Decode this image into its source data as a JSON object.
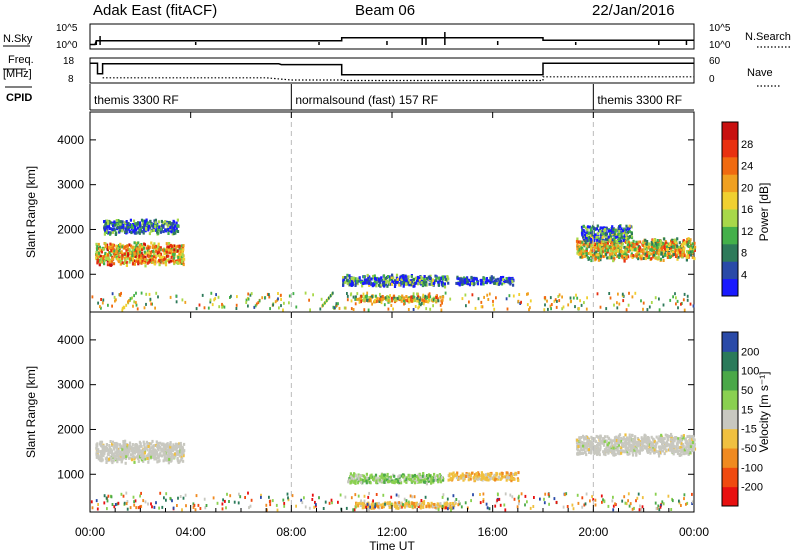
{
  "header": {
    "station": "Adak East (fitACF)",
    "beam": "Beam 06",
    "date": "22/Jan/2016"
  },
  "top_panels": {
    "nsky_label": "N.Sky",
    "nsky_ticks": [
      "10^5",
      "10^0"
    ],
    "nsearch_label": "N.Search",
    "nsearch_ticks": [
      "10^5",
      "10^0"
    ],
    "freq_label": "Freq.",
    "freq_unit": "[MHz]",
    "freq_ticks": [
      "18",
      "8"
    ],
    "nave_label": "Nave",
    "nave_ticks": [
      "60",
      "0"
    ],
    "cpid_label": "CPID"
  },
  "cpid_segments": [
    {
      "label": "themis 3300 RF",
      "start_h": 0,
      "end_h": 8
    },
    {
      "label": "normalsound (fast) 157 RF",
      "start_h": 8,
      "end_h": 20
    },
    {
      "label": "themis 3300 RF",
      "start_h": 20,
      "end_h": 24
    }
  ],
  "series_lines": {
    "freq_steps": [
      [
        0,
        16.5
      ],
      [
        0.3,
        16.5
      ],
      [
        0.3,
        11.5
      ],
      [
        0.5,
        11.5
      ],
      [
        0.5,
        16.2
      ],
      [
        7.5,
        16.2
      ],
      [
        7.6,
        15.8
      ],
      [
        10,
        15.8
      ],
      [
        10,
        11
      ],
      [
        18,
        11
      ],
      [
        18,
        16.5
      ],
      [
        24,
        16.5
      ]
    ],
    "nave_steps": [
      [
        0.5,
        6
      ],
      [
        7,
        6
      ],
      [
        8,
        2
      ],
      [
        10,
        2
      ],
      [
        10,
        1
      ],
      [
        18,
        1
      ],
      [
        18,
        8
      ],
      [
        24,
        8
      ]
    ],
    "nsky_steps": [
      [
        0,
        0.6
      ],
      [
        0.2,
        0.6
      ],
      [
        0.25,
        1.5
      ],
      [
        10,
        1.5
      ],
      [
        10,
        2.2
      ],
      [
        18,
        2.2
      ],
      [
        18,
        1.6
      ],
      [
        24,
        1.6
      ]
    ]
  },
  "chart_data": [
    {
      "type": "heatmap",
      "name": "power",
      "ylabel": "Slant Range [km]",
      "ylim": [
        180,
        4600
      ],
      "yticks": [
        1000,
        2000,
        3000,
        4000
      ],
      "xlim": [
        0,
        24
      ],
      "colorbar_label": "Power [dB]",
      "colorbar_ticks": [
        "4",
        "8",
        "12",
        "16",
        "20",
        "24",
        "28"
      ],
      "colorbar_colors": [
        "#1a1aff",
        "#2a4aa8",
        "#2e7a5a",
        "#44b04a",
        "#a8d84a",
        "#f0d030",
        "#f0a020",
        "#f06a10",
        "#e83010",
        "#c81010"
      ],
      "echo_regions": [
        {
          "t0": 0.2,
          "t1": 3.7,
          "r_center": 1450,
          "r_halfwidth": 270,
          "level": 0.65
        },
        {
          "t0": 0.5,
          "t1": 3.5,
          "r_center": 2050,
          "r_halfwidth": 180,
          "level": 0.15
        },
        {
          "t0": 10,
          "t1": 14.2,
          "r_center": 850,
          "r_halfwidth": 140,
          "level": 0.2
        },
        {
          "t0": 14.5,
          "t1": 16.8,
          "r_center": 850,
          "r_halfwidth": 100,
          "level": 0.1
        },
        {
          "t0": 10.5,
          "t1": 14,
          "r_center": 450,
          "r_halfwidth": 80,
          "level": 0.55
        },
        {
          "t0": 19.3,
          "t1": 24,
          "r_center": 1550,
          "r_halfwidth": 260,
          "level": 0.55
        },
        {
          "t0": 19.5,
          "t1": 21.5,
          "r_center": 1900,
          "r_halfwidth": 200,
          "level": 0.2
        }
      ]
    },
    {
      "type": "heatmap",
      "name": "velocity",
      "ylabel": "Slant Range [km]",
      "xlabel": "Time UT",
      "ylim": [
        180,
        4600
      ],
      "yticks": [
        1000,
        2000,
        3000,
        4000
      ],
      "xlim": [
        0,
        24
      ],
      "xtick_labels": [
        "00:00",
        "04:00",
        "08:00",
        "12:00",
        "16:00",
        "20:00",
        "00:00"
      ],
      "colorbar_label": "Velocity [m s⁻¹]",
      "colorbar_ticks": [
        "-200",
        "-100",
        "-50",
        "-15",
        "15",
        "50",
        "100",
        "200"
      ],
      "colorbar_colors": [
        "#e81010",
        "#f04a10",
        "#f08a20",
        "#f0c040",
        "#c8c8c0",
        "#8ad050",
        "#4aa848",
        "#2a7a5a",
        "#2a4aa8"
      ],
      "echo_regions": [
        {
          "t0": 0.2,
          "t1": 3.7,
          "r_center": 1500,
          "r_halfwidth": 260,
          "cls": "gray"
        },
        {
          "t0": 10.2,
          "t1": 14,
          "r_center": 900,
          "r_halfwidth": 120,
          "cls": "green"
        },
        {
          "t0": 14.2,
          "t1": 17,
          "r_center": 950,
          "r_halfwidth": 100,
          "cls": "orange"
        },
        {
          "t0": 10.5,
          "t1": 14.5,
          "r_center": 300,
          "r_halfwidth": 80,
          "cls": "orange"
        },
        {
          "t0": 19.3,
          "t1": 24,
          "r_center": 1650,
          "r_halfwidth": 250,
          "cls": "gray"
        }
      ]
    }
  ]
}
